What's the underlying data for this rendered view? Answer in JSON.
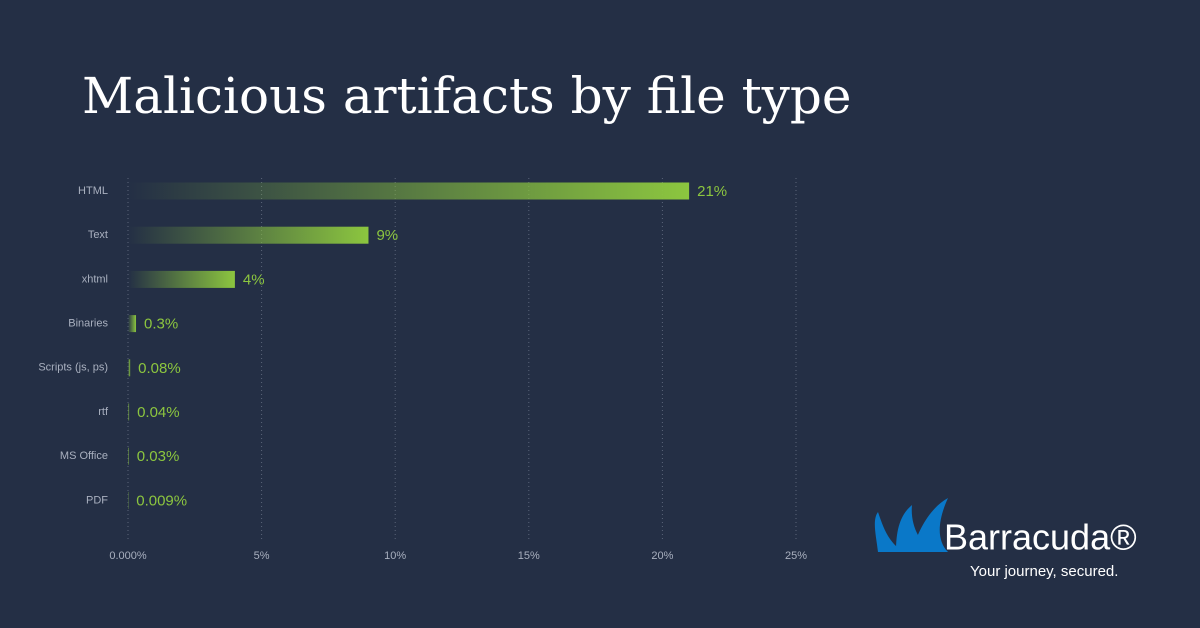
{
  "chart_data": {
    "type": "bar",
    "orientation": "horizontal",
    "title": "Malicious artifacts by file type",
    "categories": [
      "HTML",
      "Text",
      "xhtml",
      "Binaries",
      "Scripts (js, ps)",
      "rtf",
      "MS Office",
      "PDF"
    ],
    "values": [
      21,
      9,
      4,
      0.3,
      0.08,
      0.04,
      0.03,
      0.009
    ],
    "value_labels": [
      "21%",
      "9%",
      "4%",
      "0.3%",
      "0.08%",
      "0.04%",
      "0.03%",
      "0.009%"
    ],
    "color": "#8cc63f",
    "xlim": [
      0,
      25
    ],
    "xticks": [
      {
        "value": 0,
        "label": "0.000%"
      },
      {
        "value": 5,
        "label": "5%"
      },
      {
        "value": 10,
        "label": "10%"
      },
      {
        "value": 15,
        "label": "15%"
      },
      {
        "value": 20,
        "label": "20%"
      },
      {
        "value": 25,
        "label": "25%"
      }
    ],
    "grid": true
  },
  "logo": {
    "name": "Barracuda®",
    "tagline": "Your journey, secured."
  }
}
